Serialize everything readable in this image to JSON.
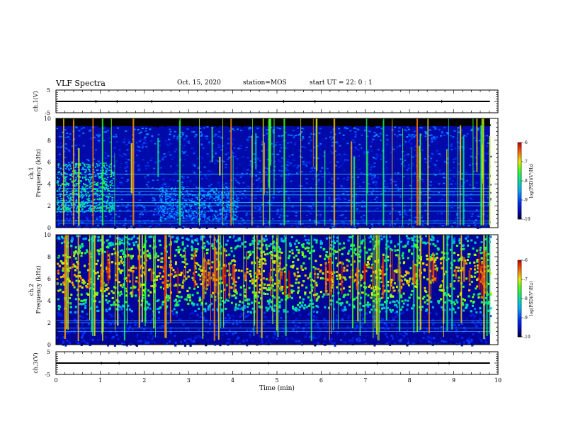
{
  "header": {
    "title": "VLF Spectra",
    "date": "Oct. 15, 2020",
    "station": "station=MOS",
    "start_ut": "start UT =  22: 0  : 1"
  },
  "chart_data": [
    {
      "type": "line",
      "panel": "ch1-waveform",
      "ylabel": "ch.1(V)",
      "ylim": [
        -5,
        5
      ],
      "yticks": [
        "5",
        "-5"
      ],
      "xlim": [
        0,
        10
      ],
      "series": [
        {
          "x": [
            0,
            9.82
          ],
          "values": [
            0,
            0
          ]
        }
      ]
    },
    {
      "type": "heatmap",
      "panel": "ch1-spectrogram",
      "ylabel": "ch.1\nFrequency (kHz)",
      "ylim": [
        0,
        10
      ],
      "yticks": [
        "0",
        "2",
        "4",
        "6",
        "8",
        "10"
      ],
      "xlim": [
        0,
        10
      ],
      "data_extent_min": 9.82,
      "colorbar": {
        "label": "log(PSD)(V²/Hz)",
        "range": [
          -10,
          -6
        ],
        "ticks": [
          "-6",
          "-7",
          "-8",
          "-9",
          "-10"
        ]
      },
      "features": {
        "background_level": -9.6,
        "diffuse_hiss_blobs": [
          {
            "t": [
              0,
              1.3
            ],
            "f": [
              1.5,
              6
            ],
            "level": -8.0
          },
          {
            "t": [
              2.3,
              4.1
            ],
            "f": [
              0.8,
              3.8
            ],
            "level": -8.6
          }
        ],
        "band_near_9kHz_level": -9.0,
        "horizontal_lines_kHz": [
          0.4,
          0.6,
          1.5,
          2.0,
          2.3,
          3.0,
          3.3,
          3.6,
          4.9
        ],
        "sferic_count": 60
      }
    },
    {
      "type": "heatmap",
      "panel": "ch2-spectrogram",
      "ylabel": "ch.2\nFrequency (kHz)",
      "ylim": [
        0,
        10
      ],
      "yticks": [
        "0",
        "2",
        "4",
        "6",
        "8",
        "10"
      ],
      "xlim": [
        0,
        10
      ],
      "data_extent_min": 9.82,
      "colorbar": {
        "label": "log(PSD)(V²/Hz)",
        "range": [
          -10,
          -6
        ],
        "ticks": [
          "-6",
          "-7",
          "-8",
          "-9",
          "-10"
        ]
      },
      "features": {
        "background_level": -9.7,
        "activity_band_kHz": [
          3,
          10
        ],
        "peak_level": -6.6,
        "horizontal_lines_kHz": [
          1.2,
          1.5,
          2.0,
          2.2
        ],
        "sferic_count": 70
      }
    },
    {
      "type": "line",
      "panel": "ch3-waveform",
      "ylabel": "ch.3(V)",
      "ylim": [
        -5,
        5
      ],
      "yticks": [
        "5",
        "-5"
      ],
      "xlim": [
        0,
        10
      ],
      "xlabel": "Time (min)",
      "xticks": [
        "0",
        "1",
        "2",
        "3",
        "4",
        "5",
        "6",
        "7",
        "8",
        "9",
        "10"
      ],
      "series": [
        {
          "x": [
            0,
            9.82
          ],
          "values": [
            0,
            0
          ]
        }
      ]
    }
  ]
}
